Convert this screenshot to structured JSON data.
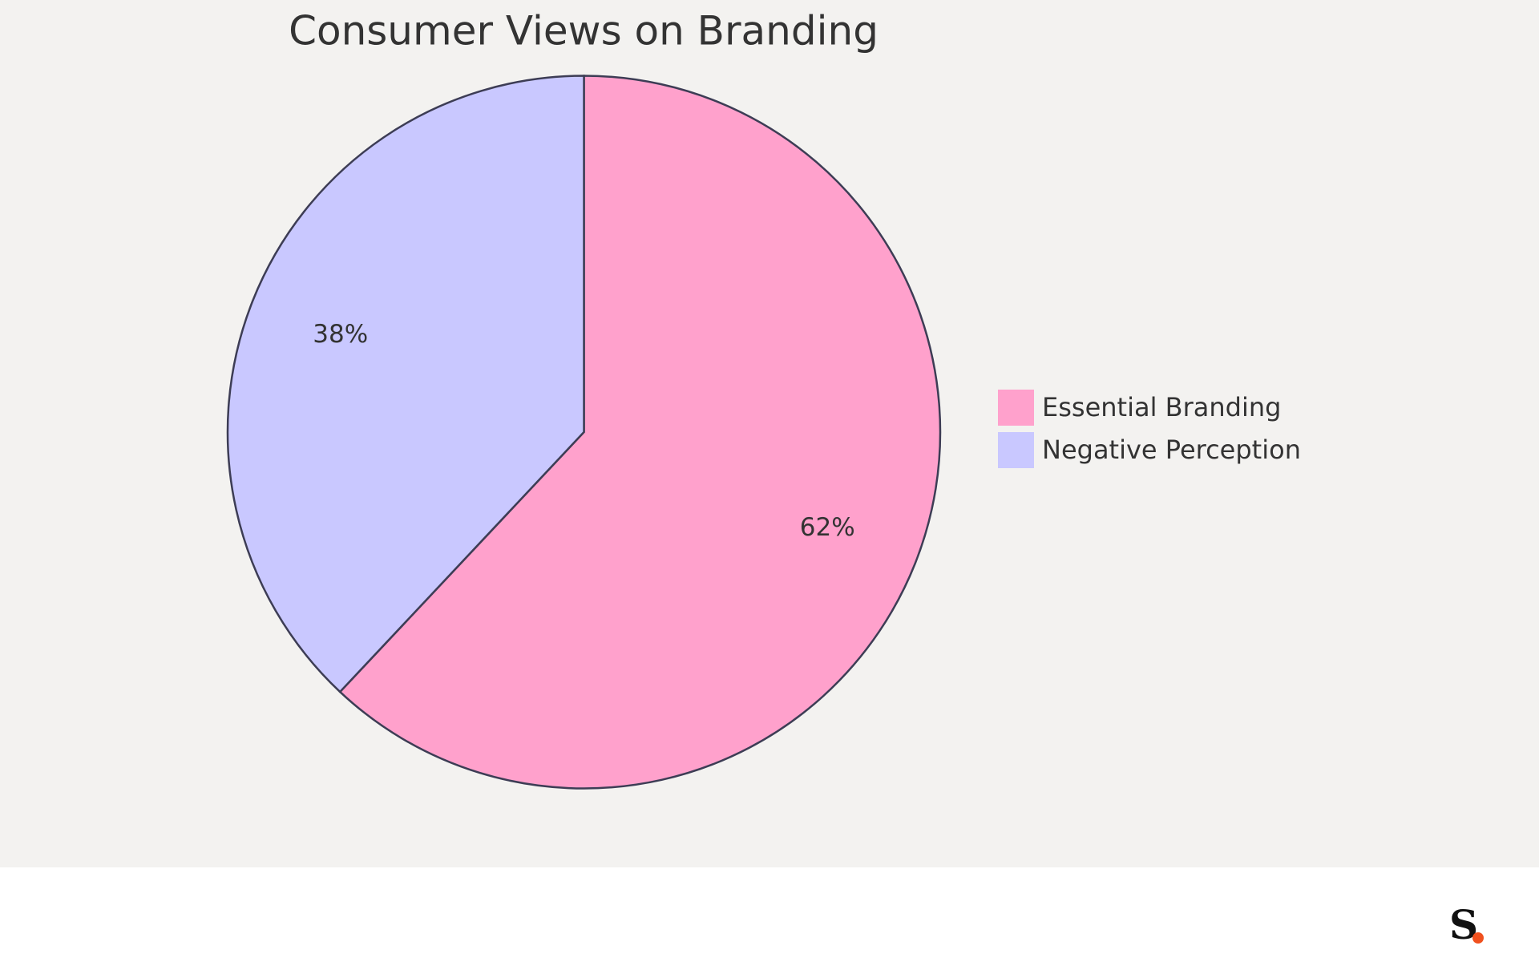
{
  "chart_data": {
    "type": "pie",
    "title": "Consumer Views on Branding",
    "categories": [
      "Essential Branding",
      "Negative Perception"
    ],
    "values": [
      62,
      38
    ],
    "value_labels": [
      "62%",
      "38%"
    ],
    "colors": [
      "#ffa1cc",
      "#c9c8ff"
    ],
    "legend": "right"
  },
  "footer": {
    "logo": "S"
  }
}
